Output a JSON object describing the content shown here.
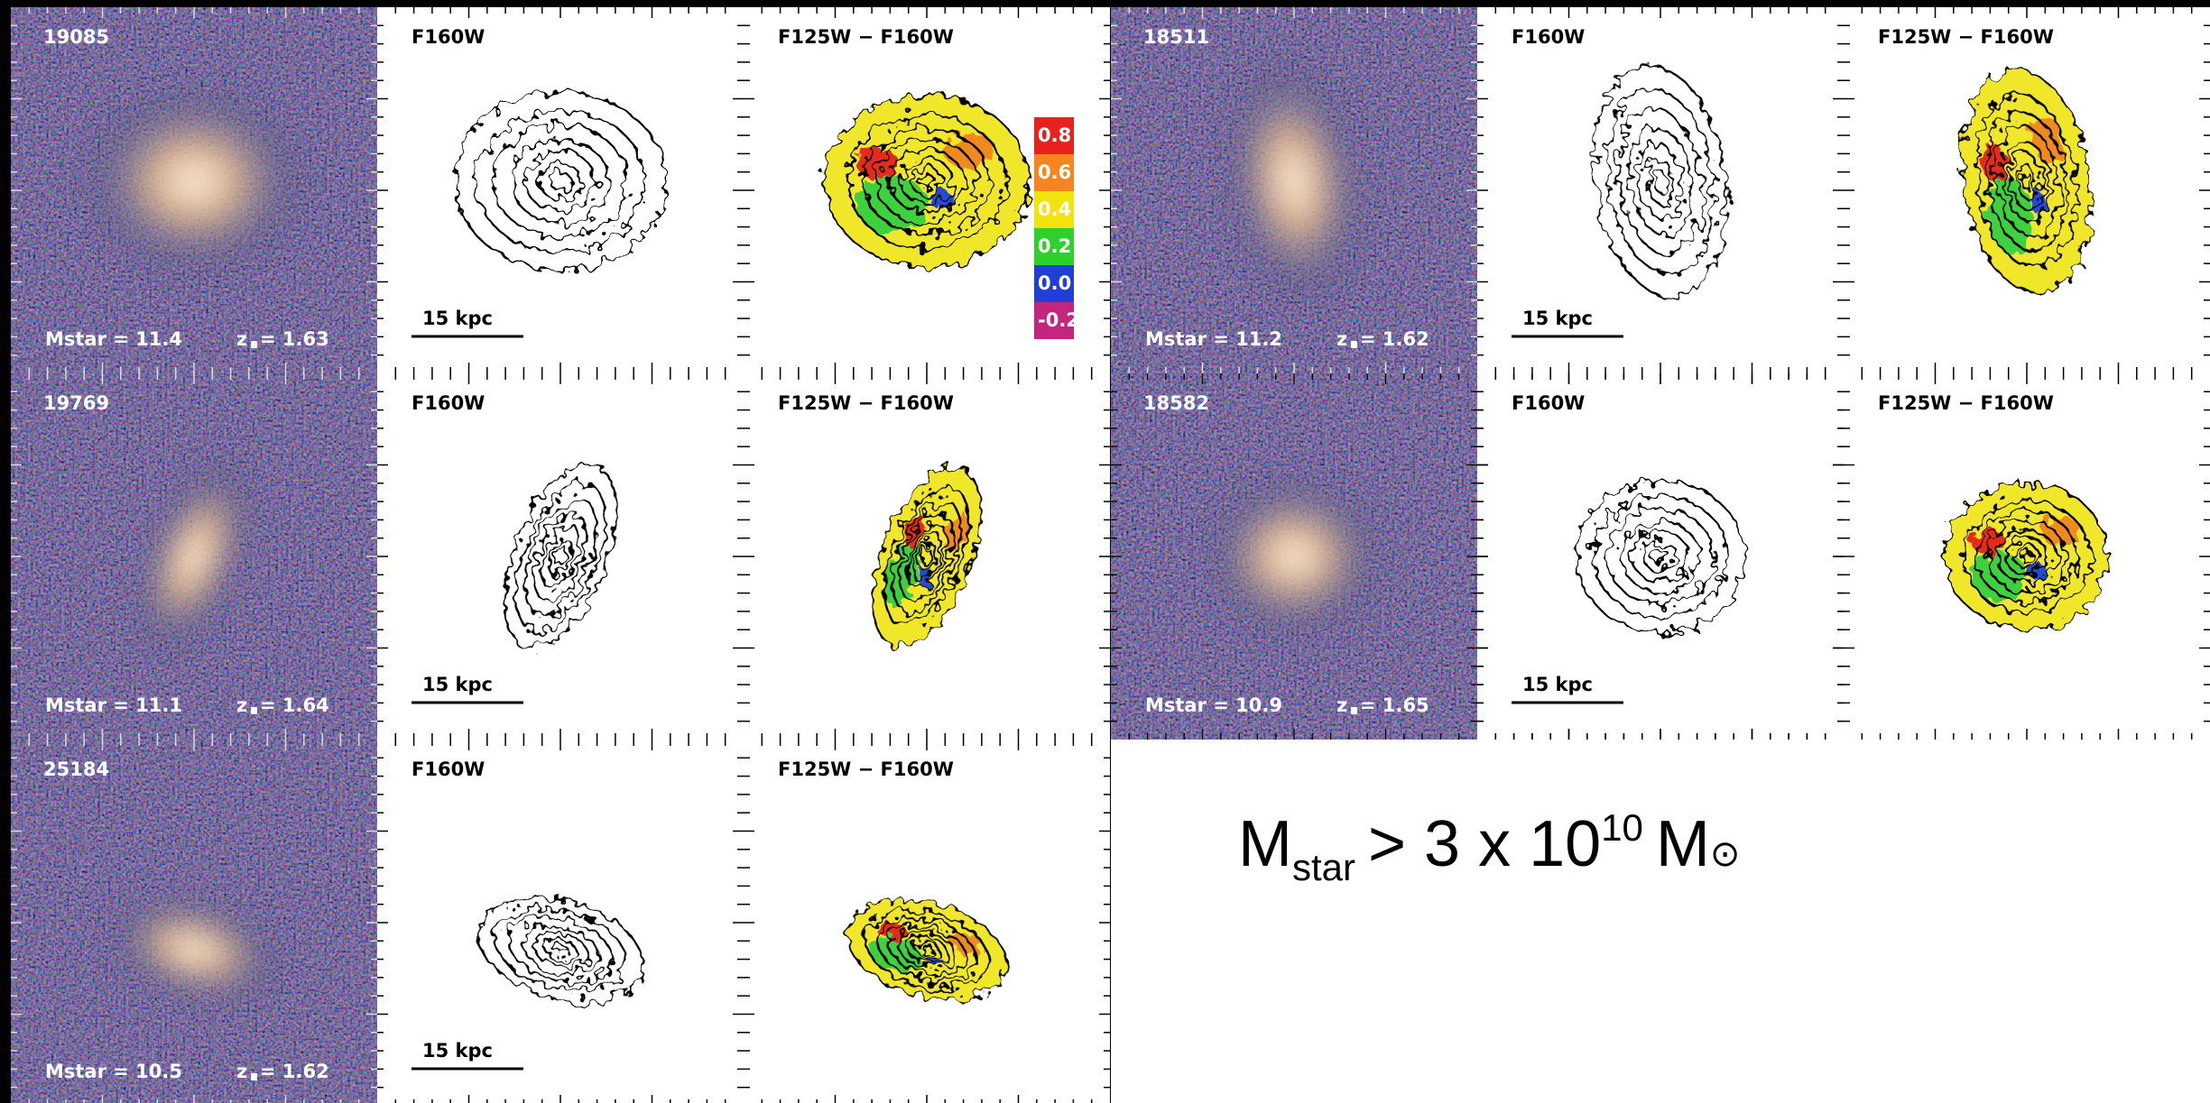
{
  "panels": [
    {
      "id": "19085",
      "mass": "Mstar = 11.4",
      "z": "z",
      "redshift": "= 1.63",
      "band": "F160W",
      "color": "F125W − F160W",
      "scale": "15 kpc"
    },
    {
      "id": "18511",
      "mass": "Mstar = 11.2",
      "z": "z",
      "redshift": "= 1.62",
      "band": "F160W",
      "color": "F125W − F160W",
      "scale": "15 kpc"
    },
    {
      "id": "19769",
      "mass": "Mstar = 11.1",
      "z": "z",
      "redshift": "= 1.64",
      "band": "F160W",
      "color": "F125W − F160W",
      "scale": "15 kpc"
    },
    {
      "id": "18582",
      "mass": "Mstar = 10.9",
      "z": "z",
      "redshift": "= 1.65",
      "band": "F160W",
      "color": "F125W − F160W",
      "scale": "15 kpc"
    },
    {
      "id": "25184",
      "mass": "Mstar = 10.5",
      "z": "z",
      "redshift": "= 1.62",
      "band": "F160W",
      "color": "F125W − F160W",
      "scale": "15 kpc"
    }
  ],
  "colorbar": [
    "0.8",
    "0.6",
    "0.4",
    "0.2",
    "0.0",
    "-0.2"
  ],
  "caption": {
    "main": "M",
    "sub": "star",
    "relation": "> 3 x 10",
    "exponent": "10",
    "unit": "M",
    "symbol": "⊙"
  }
}
